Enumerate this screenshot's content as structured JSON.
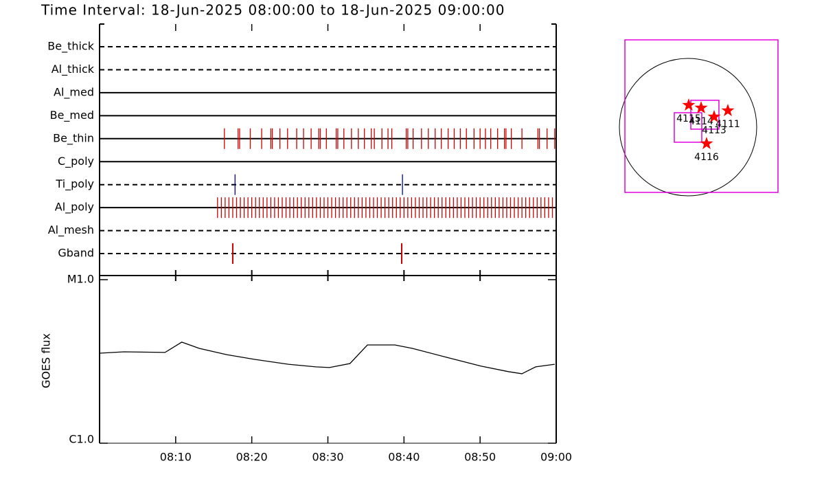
{
  "chart_data": [
    {
      "type": "event",
      "title": "Time Interval: 18-Jun-2025 08:00:00 to 18-Jun-2025 09:00:00",
      "categories": [
        "Be_thick",
        "Al_thick",
        "Al_med",
        "Be_med",
        "Be_thin",
        "C_poly",
        "Ti_poly",
        "Al_poly",
        "Al_mesh",
        "Gband"
      ],
      "line_styles": [
        "dashed",
        "dashed",
        "solid",
        "solid",
        "solid",
        "solid",
        "dashed",
        "solid",
        "dashed",
        "dashed"
      ],
      "event_colors": [
        "#cc0000",
        "#cc0000",
        "#cc0000",
        "#cc0000",
        "#cc0000",
        "#cc0000",
        "#0000aa",
        "#cc0000",
        "#cc0000",
        "#cc0000"
      ],
      "events": [
        [],
        [],
        [],
        [],
        [
          16.4,
          18.2,
          18.4,
          19.8,
          21.3,
          22.5,
          22.7,
          23.7,
          24.7,
          25.9,
          26.8,
          27.8,
          28.8,
          29.0,
          29.8,
          31.1,
          31.3,
          32.1,
          33.1,
          34.0,
          34.8,
          35.7,
          36.1,
          37.1,
          37.9,
          38.4,
          40.3,
          40.5,
          41.2,
          42.3,
          43.2,
          44.1,
          44.9,
          45.8,
          46.6,
          47.4,
          48.2,
          49.2,
          50.0,
          50.7,
          51.4,
          52.3,
          53.2,
          53.4,
          54.1,
          55.5,
          57.6,
          57.8,
          58.8,
          59.8
        ],
        [],
        [
          17.8,
          39.8
        ],
        [
          15.5,
          16.0,
          16.5,
          17.0,
          17.5,
          18.0,
          18.5,
          19.0,
          19.5,
          20.0,
          20.5,
          21.0,
          21.5,
          22.0,
          22.5,
          23.0,
          23.5,
          24.0,
          24.5,
          25.0,
          25.5,
          26.0,
          26.5,
          27.0,
          27.5,
          28.0,
          28.5,
          29.0,
          29.5,
          30.0,
          30.5,
          31.0,
          31.5,
          32.0,
          32.5,
          33.0,
          33.5,
          34.0,
          34.5,
          35.0,
          35.5,
          36.0,
          36.5,
          37.0,
          37.5,
          38.0,
          38.5,
          39.0,
          39.5,
          40.0,
          40.5,
          41.0,
          41.5,
          42.0,
          42.5,
          43.0,
          43.5,
          44.0,
          44.5,
          45.0,
          45.5,
          46.0,
          46.5,
          47.0,
          47.5,
          48.0,
          48.5,
          49.0,
          49.5,
          50.0,
          50.5,
          51.0,
          51.5,
          52.0,
          52.5,
          53.0,
          53.5,
          54.0,
          54.5,
          55.0,
          55.5,
          56.0,
          56.5,
          57.0,
          57.5,
          58.0,
          58.5,
          59.0,
          59.5
        ],
        [],
        [
          17.5,
          39.7
        ]
      ],
      "xlim": [
        0,
        60
      ]
    },
    {
      "type": "line",
      "ylabel": "GOES flux",
      "log": true,
      "color": "#000000",
      "x": [
        0,
        3.2,
        8.6,
        10.8,
        13.1,
        16.7,
        20.3,
        24.8,
        28.4,
        30.2,
        32.9,
        35.2,
        38.8,
        41.1,
        45.6,
        50.1,
        53.7,
        55.5,
        57.3,
        59.8
      ],
      "values": [
        3.55e-06,
        3.62e-06,
        3.59e-06,
        4.15e-06,
        3.8e-06,
        3.48e-06,
        3.26e-06,
        3.04e-06,
        2.93e-06,
        2.9e-06,
        3.07e-06,
        3.99e-06,
        3.99e-06,
        3.8e-06,
        3.35e-06,
        2.96e-06,
        2.74e-06,
        2.66e-06,
        2.93e-06,
        3.04e-06
      ],
      "xlim": [
        0,
        60
      ],
      "xticks": [
        {
          "value": 10,
          "label": "08:10"
        },
        {
          "value": 20,
          "label": "08:20"
        },
        {
          "value": 30,
          "label": "08:30"
        },
        {
          "value": 40,
          "label": "08:40"
        },
        {
          "value": 50,
          "label": "08:50"
        },
        {
          "value": 60,
          "label": "09:00"
        }
      ],
      "ylim": [
        1e-06,
        1e-05
      ],
      "yticks": [
        {
          "value": 1e-06,
          "label": "C1.0"
        },
        {
          "value": 1e-05,
          "label": "M1.0"
        }
      ]
    },
    {
      "type": "map",
      "solar_radius": 945,
      "box_color": "#e000e0",
      "star_color": "#ff0000",
      "frame": {
        "x": [
          -869,
          1238
        ],
        "y": [
          -898,
          1200
        ]
      },
      "boxes": [
        {
          "x": [
            -189,
            189
          ],
          "y": [
            -208,
            198
          ]
        },
        {
          "x": [
            38,
            425
          ],
          "y": [
            -28,
            369
          ]
        }
      ],
      "regions": [
        {
          "label": "4115",
          "x": 9,
          "y": 302
        },
        {
          "label": "4114",
          "x": 180,
          "y": 265
        },
        {
          "label": "4113",
          "x": 359,
          "y": 142
        },
        {
          "label": "4111",
          "x": 548,
          "y": 227
        },
        {
          "label": "4116",
          "x": 255,
          "y": -227
        }
      ]
    }
  ]
}
